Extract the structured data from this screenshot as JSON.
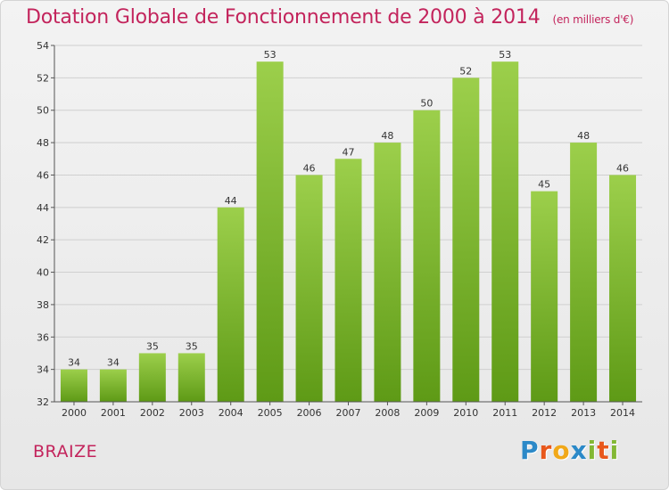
{
  "title": "Dotation Globale de Fonctionnement de 2000 à 2014",
  "unit": "(en milliers d'€)",
  "commune": "BRAIZE",
  "logo": {
    "text": "Proxiti",
    "letters": [
      {
        "ch": "P",
        "color": "#2b89c8"
      },
      {
        "ch": "r",
        "color": "#e8571b"
      },
      {
        "ch": "o",
        "color": "#f1a818"
      },
      {
        "ch": "x",
        "color": "#2b89c8"
      },
      {
        "ch": "i",
        "color": "#83b834"
      },
      {
        "ch": "t",
        "color": "#e8571b"
      },
      {
        "ch": "i",
        "color": "#83b834"
      }
    ]
  },
  "colors": {
    "title": "#c3245c",
    "bar_top": "#9ccf4b",
    "bar_bottom": "#5e9a16",
    "grid": "#cfcfcf",
    "axis": "#555555"
  },
  "chart_data": {
    "type": "bar",
    "categories": [
      "2000",
      "2001",
      "2002",
      "2003",
      "2004",
      "2005",
      "2006",
      "2007",
      "2008",
      "2009",
      "2010",
      "2011",
      "2012",
      "2013",
      "2014"
    ],
    "values": [
      34,
      34,
      35,
      35,
      44,
      53,
      46,
      47,
      48,
      50,
      52,
      53,
      45,
      48,
      46
    ],
    "ylim": [
      32,
      54
    ],
    "yticks": [
      32,
      34,
      36,
      38,
      40,
      42,
      44,
      46,
      48,
      50,
      52,
      54
    ],
    "grid": true,
    "data_labels": true
  }
}
